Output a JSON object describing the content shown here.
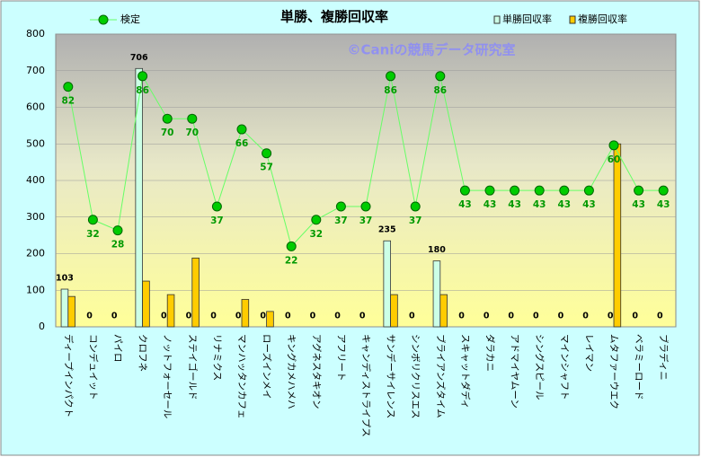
{
  "chart_data": {
    "type": "bar",
    "title": "単勝、複勝回収率",
    "annotation": "©Caniの競馬データ研究室",
    "categories": [
      "ディープインパクト",
      "コンデュイット",
      "パイロ",
      "クロフネ",
      "ノットフォーセール",
      "ステイゴールド",
      "リナミクス",
      "マンハッタンカフェ",
      "ローズインメイ",
      "キングカメハメハ",
      "アグネスタキオン",
      "アフリート",
      "キャンディストライプス",
      "サンデーサイレンス",
      "シンボリクリスエス",
      "ブライアンズタイム",
      "スキャットダディ",
      "ダラカニ",
      "アドマイヤムーン",
      "シングスピール",
      "マインシャフト",
      "レイマン",
      "ムタファーウエク",
      "ベラミーロード",
      "ブラディニ"
    ],
    "series": [
      {
        "name": "単勝回収率",
        "type": "bar",
        "color": "#ccffe6",
        "values": [
          103,
          0,
          0,
          706,
          0,
          0,
          0,
          0,
          0,
          0,
          0,
          0,
          0,
          235,
          0,
          180,
          0,
          0,
          0,
          0,
          0,
          0,
          0,
          0,
          0
        ]
      },
      {
        "name": "複勝回収率",
        "type": "bar",
        "color": "#ffcc00",
        "values": [
          83,
          0,
          0,
          125,
          88,
          188,
          0,
          75,
          42,
          0,
          0,
          0,
          0,
          88,
          0,
          88,
          0,
          0,
          0,
          0,
          0,
          0,
          500,
          0,
          0
        ]
      },
      {
        "name": "検定",
        "type": "line",
        "axis": "y2",
        "color": "#66ff66",
        "values": [
          82,
          32,
          28,
          86,
          70,
          70,
          37,
          66,
          57,
          22,
          32,
          37,
          37,
          86,
          37,
          86,
          43,
          43,
          43,
          43,
          43,
          43,
          60,
          43,
          43
        ]
      }
    ],
    "ylim": [
      0,
      800
    ],
    "yticks": [
      0,
      100,
      200,
      300,
      400,
      500,
      600,
      700,
      800
    ],
    "y2lim": [
      -8.25,
      101.8
    ],
    "grid": true
  }
}
